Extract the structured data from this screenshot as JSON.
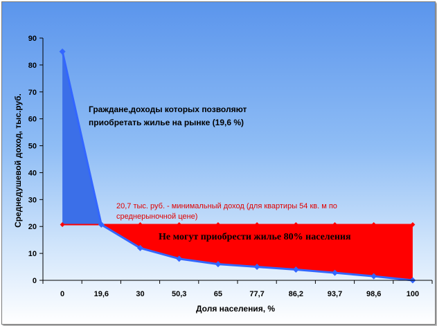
{
  "chart_data": {
    "type": "area",
    "title": "",
    "xlabel": "Доля населения, %",
    "ylabel": "Среднедушевой доход, тыс.руб.",
    "categories": [
      "0",
      "19,6",
      "30",
      "50,3",
      "65",
      "77,7",
      "86,2",
      "93,7",
      "98,6",
      "100"
    ],
    "ylim": [
      0,
      90
    ],
    "yticks": [
      0,
      10,
      20,
      30,
      40,
      50,
      60,
      70,
      80,
      90
    ],
    "grid": false,
    "series": [
      {
        "values": [
          85,
          20.7,
          12,
          8,
          6,
          5,
          4,
          2.8,
          1.5,
          0
        ]
      },
      {
        "values": [
          20.7,
          20.7,
          20.7,
          20.7,
          20.7,
          20.7,
          20.7,
          20.7,
          20.7,
          20.7
        ]
      }
    ],
    "colors": {
      "above_fill": "#3b6fe8",
      "below_fill": "#ff0000",
      "line": "#3366ff",
      "threshold_line": "#ff0000"
    },
    "annotations": {
      "above_line1": "Граждане,доходы которых позволяют",
      "above_line2": "приобретать жилье на рынке (19,6 %)",
      "threshold_line1": "20,7 тыс. руб. - минимальный доход (для квартиры 54 кв. м по",
      "threshold_line2": "среднерыночной цене)",
      "below": "Не могут приобрести жилье 80% населения"
    }
  }
}
